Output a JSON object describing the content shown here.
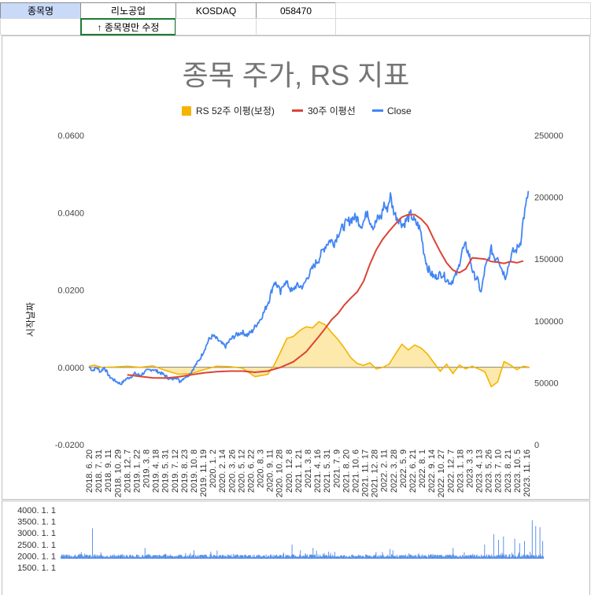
{
  "sheet": {
    "label_stock_name": "종목명",
    "stock_name": "리노공업",
    "market": "KOSDAQ",
    "code": "058470",
    "edit_hint": "↑ 종목명만 수정"
  },
  "colors": {
    "rs_fill": "#fce8a6",
    "rs_line": "#f4b400",
    "ma_line": "#db4437",
    "close_line": "#4285f4",
    "volume_bar": "#4a86e8",
    "header_bg": "#c9daf8",
    "note_border": "#1e7b34"
  },
  "chart_data": [
    {
      "type": "line",
      "title": "종목 주가, RS 지표",
      "ylabel": "시작날짜",
      "legend_position": "top",
      "legend": [
        "RS 52주 이평(보정)",
        "30주 이평선",
        "Close"
      ],
      "left_axis": {
        "min": -0.02,
        "max": 0.06,
        "ticks": [
          "-0.0200",
          "0.0000",
          "0.0200",
          "0.0400",
          "0.0600"
        ]
      },
      "right_axis": {
        "min": 0,
        "max": 250000,
        "ticks": [
          "0",
          "50000",
          "100000",
          "150000",
          "200000",
          "250000"
        ]
      },
      "x_ticks": [
        "2018. 6. 20",
        "2018. 7. 31",
        "2018. 9. 11",
        "2018. 10. 29",
        "2018. 12. 7",
        "2019. 1. 22",
        "2019. 3. 8",
        "2019. 4. 18",
        "2019. 5. 31",
        "2019. 7. 12",
        "2019. 8. 23",
        "2019. 10. 8",
        "2019. 11. 19",
        "2020. 1. 2",
        "2020. 2. 14",
        "2020. 3. 26",
        "2020. 5. 12",
        "2020. 6. 22",
        "2020. 8. 3",
        "2020. 9. 11",
        "2020. 10. 28",
        "2020. 12. 8",
        "2021. 1. 21",
        "2021. 3. 8",
        "2021. 4. 16",
        "2021. 5. 31",
        "2021. 7. 9",
        "2021. 8. 20",
        "2021. 10. 6",
        "2021. 11. 17",
        "2021. 12. 28",
        "2022. 2. 11",
        "2022. 3. 28",
        "2022. 5. 9",
        "2022. 6. 21",
        "2022. 8. 1",
        "2022. 9. 14",
        "2022. 10. 27",
        "2022. 12. 7",
        "2023. 1. 18",
        "2023. 3. 3",
        "2023. 4. 13",
        "2023. 5. 26",
        "2023. 7. 10",
        "2023. 8. 21",
        "2023. 10. 5",
        "2023. 11. 16"
      ],
      "series": [
        {
          "name": "RS 52주 이평(보정)",
          "axis": "left",
          "kind": "area",
          "points": [
            [
              0,
              0.0002
            ],
            [
              8,
              0.0006
            ],
            [
              20,
              0.0
            ],
            [
              40,
              0.0001
            ],
            [
              60,
              0.0003
            ],
            [
              80,
              0.0
            ],
            [
              100,
              0.0004
            ],
            [
              120,
              -0.0008
            ],
            [
              140,
              -0.0018
            ],
            [
              160,
              -0.0016
            ],
            [
              180,
              -0.0006
            ],
            [
              200,
              0.0003
            ],
            [
              220,
              0.0002
            ],
            [
              240,
              -0.0002
            ],
            [
              260,
              -0.0024
            ],
            [
              280,
              -0.0018
            ],
            [
              290,
              0.0006
            ],
            [
              300,
              0.004
            ],
            [
              310,
              0.0075
            ],
            [
              320,
              0.008
            ],
            [
              330,
              0.0095
            ],
            [
              340,
              0.0105
            ],
            [
              350,
              0.0102
            ],
            [
              360,
              0.0118
            ],
            [
              370,
              0.011
            ],
            [
              380,
              0.009
            ],
            [
              390,
              0.0072
            ],
            [
              400,
              0.005
            ],
            [
              410,
              0.0025
            ],
            [
              420,
              0.001
            ],
            [
              430,
              0.0005
            ],
            [
              440,
              0.0012
            ],
            [
              450,
              -0.0004
            ],
            [
              460,
              0.0
            ],
            [
              470,
              0.0008
            ],
            [
              480,
              0.0035
            ],
            [
              490,
              0.006
            ],
            [
              500,
              0.0045
            ],
            [
              510,
              0.0058
            ],
            [
              520,
              0.005
            ],
            [
              530,
              0.0035
            ],
            [
              540,
              0.0012
            ],
            [
              550,
              -0.001
            ],
            [
              560,
              0.0008
            ],
            [
              570,
              -0.0016
            ],
            [
              580,
              0.0006
            ],
            [
              590,
              -0.0004
            ],
            [
              600,
              0.0003
            ],
            [
              610,
              -0.0004
            ],
            [
              620,
              -0.0012
            ],
            [
              630,
              -0.005
            ],
            [
              640,
              -0.0038
            ],
            [
              650,
              0.0015
            ],
            [
              660,
              0.0006
            ],
            [
              670,
              -0.0006
            ],
            [
              680,
              0.0003
            ],
            [
              690,
              0.0
            ]
          ]
        },
        {
          "name": "30주 이평선",
          "axis": "right",
          "kind": "line",
          "points": [
            [
              60,
              56500
            ],
            [
              80,
              55200
            ],
            [
              100,
              54000
            ],
            [
              120,
              53800
            ],
            [
              140,
              54800
            ],
            [
              160,
              56500
            ],
            [
              180,
              58000
            ],
            [
              200,
              59000
            ],
            [
              220,
              59500
            ],
            [
              240,
              59500
            ],
            [
              260,
              58500
            ],
            [
              280,
              59500
            ],
            [
              300,
              62500
            ],
            [
              320,
              67000
            ],
            [
              340,
              75000
            ],
            [
              360,
              87500
            ],
            [
              370,
              94000
            ],
            [
              380,
              101000
            ],
            [
              390,
              106000
            ],
            [
              400,
              113000
            ],
            [
              410,
              118500
            ],
            [
              420,
              123500
            ],
            [
              430,
              132000
            ],
            [
              440,
              146000
            ],
            [
              450,
              157500
            ],
            [
              460,
              166000
            ],
            [
              470,
              172500
            ],
            [
              480,
              178500
            ],
            [
              490,
              184000
            ],
            [
              500,
              186000
            ],
            [
              510,
              186000
            ],
            [
              520,
              182500
            ],
            [
              530,
              177000
            ],
            [
              540,
              166000
            ],
            [
              550,
              156000
            ],
            [
              560,
              147000
            ],
            [
              570,
              141000
            ],
            [
              580,
              139000
            ],
            [
              590,
              142000
            ],
            [
              600,
              151000
            ],
            [
              610,
              150500
            ],
            [
              620,
              150000
            ],
            [
              630,
              148000
            ],
            [
              640,
              147500
            ],
            [
              650,
              146500
            ],
            [
              660,
              148000
            ],
            [
              670,
              147000
            ],
            [
              680,
              148500
            ]
          ]
        },
        {
          "name": "Close",
          "axis": "right",
          "kind": "line",
          "points": [
            [
              0,
              63000
            ],
            [
              6,
              60000
            ],
            [
              12,
              62500
            ],
            [
              18,
              59000
            ],
            [
              24,
              62500
            ],
            [
              32,
              55000
            ],
            [
              40,
              52000
            ],
            [
              50,
              49000
            ],
            [
              58,
              53000
            ],
            [
              66,
              55000
            ],
            [
              72,
              57500
            ],
            [
              80,
              56000
            ],
            [
              90,
              59500
            ],
            [
              100,
              61000
            ],
            [
              108,
              59000
            ],
            [
              116,
              57000
            ],
            [
              124,
              54000
            ],
            [
              130,
              52500
            ],
            [
              136,
              55000
            ],
            [
              142,
              51000
            ],
            [
              150,
              54500
            ],
            [
              158,
              57000
            ],
            [
              166,
              63500
            ],
            [
              174,
              69500
            ],
            [
              180,
              76000
            ],
            [
              188,
              85000
            ],
            [
              194,
              88000
            ],
            [
              200,
              85500
            ],
            [
              208,
              81500
            ],
            [
              214,
              79500
            ],
            [
              220,
              84000
            ],
            [
              226,
              87000
            ],
            [
              232,
              89000
            ],
            [
              240,
              91000
            ],
            [
              248,
              88500
            ],
            [
              256,
              92000
            ],
            [
              262,
              97000
            ],
            [
              268,
              101000
            ],
            [
              274,
              107000
            ],
            [
              282,
              117000
            ],
            [
              290,
              131500
            ],
            [
              296,
              128000
            ],
            [
              300,
              122000
            ],
            [
              306,
              132000
            ],
            [
              312,
              129000
            ],
            [
              318,
              123500
            ],
            [
              324,
              128500
            ],
            [
              330,
              128000
            ],
            [
              336,
              128000
            ],
            [
              342,
              135500
            ],
            [
              348,
              140500
            ],
            [
              354,
              146000
            ],
            [
              360,
              150000
            ],
            [
              366,
              157000
            ],
            [
              372,
              162000
            ],
            [
              378,
              165500
            ],
            [
              384,
              163000
            ],
            [
              390,
              170500
            ],
            [
              396,
              174500
            ],
            [
              402,
              178500
            ],
            [
              408,
              181000
            ],
            [
              414,
              183500
            ],
            [
              420,
              183000
            ],
            [
              426,
              177500
            ],
            [
              432,
              182000
            ],
            [
              436,
              190000
            ],
            [
              440,
              181000
            ],
            [
              446,
              176000
            ],
            [
              452,
              182500
            ],
            [
              458,
              184500
            ],
            [
              462,
              195000
            ],
            [
              466,
              189000
            ],
            [
              472,
              201000
            ],
            [
              476,
              191000
            ],
            [
              480,
              185500
            ],
            [
              486,
              182000
            ],
            [
              492,
              177500
            ],
            [
              498,
              182000
            ],
            [
              504,
              186000
            ],
            [
              510,
              180000
            ],
            [
              516,
              177000
            ],
            [
              520,
              171000
            ],
            [
              524,
              157000
            ],
            [
              530,
              143500
            ],
            [
              536,
              138000
            ],
            [
              542,
              135000
            ],
            [
              548,
              137500
            ],
            [
              554,
              138000
            ],
            [
              560,
              133500
            ],
            [
              566,
              131000
            ],
            [
              572,
              134500
            ],
            [
              578,
              141000
            ],
            [
              584,
              156500
            ],
            [
              590,
              161000
            ],
            [
              596,
              152000
            ],
            [
              602,
              137500
            ],
            [
              608,
              134000
            ],
            [
              614,
              122500
            ],
            [
              620,
              142000
            ],
            [
              626,
              150500
            ],
            [
              630,
              158000
            ],
            [
              636,
              150000
            ],
            [
              640,
              153000
            ],
            [
              646,
              142500
            ],
            [
              652,
              136000
            ],
            [
              656,
              143000
            ],
            [
              660,
              150500
            ],
            [
              664,
              156000
            ],
            [
              668,
              156500
            ],
            [
              672,
              160000
            ],
            [
              676,
              164500
            ],
            [
              680,
              182000
            ],
            [
              684,
              192000
            ],
            [
              688,
              205000
            ]
          ]
        }
      ],
      "x_count": 690
    },
    {
      "type": "bar",
      "title": "",
      "y_ticks": [
        "1500. 1. 1",
        "2000. 1. 1",
        "2500. 1. 1",
        "3000. 1. 1",
        "3500. 1. 1",
        "4000. 1. 1"
      ],
      "ylim": [
        1500,
        4000
      ],
      "baseline": 1950,
      "spikes": [
        [
          45,
          3200
        ],
        [
          120,
          2350
        ],
        [
          190,
          2250
        ],
        [
          330,
          2500
        ],
        [
          360,
          2350
        ],
        [
          470,
          2300
        ],
        [
          560,
          2350
        ],
        [
          605,
          2500
        ],
        [
          618,
          2950
        ],
        [
          625,
          2700
        ],
        [
          632,
          2850
        ],
        [
          648,
          2750
        ],
        [
          655,
          2550
        ],
        [
          662,
          2650
        ],
        [
          673,
          3550
        ],
        [
          678,
          3300
        ],
        [
          684,
          3250
        ],
        [
          688,
          2650
        ]
      ]
    }
  ]
}
